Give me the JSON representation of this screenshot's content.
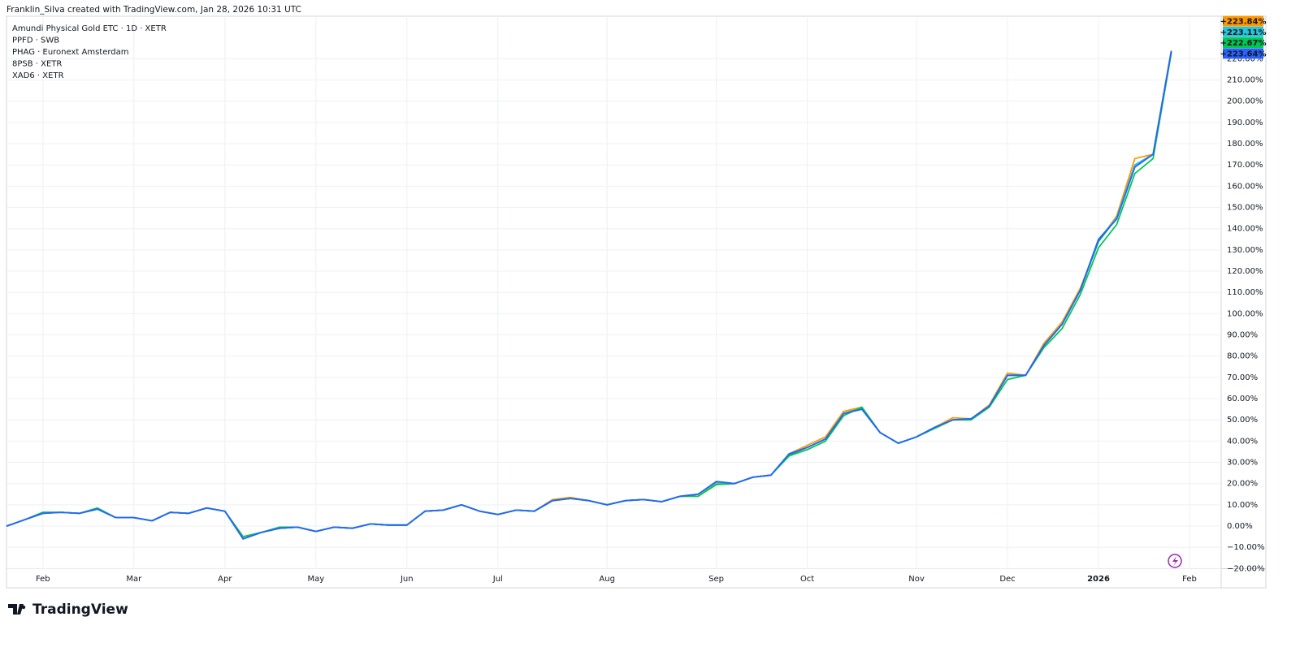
{
  "header": {
    "text": "Franklin_Silva created with TradingView.com, Jan 28, 2026 10:31 UTC"
  },
  "footer": {
    "logo": "TradingView"
  },
  "chart_data": {
    "type": "line",
    "categories": [
      null,
      null,
      "Feb",
      null,
      null,
      null,
      null,
      "Mar",
      null,
      null,
      null,
      null,
      "Apr",
      null,
      null,
      null,
      null,
      "May",
      null,
      null,
      null,
      null,
      "Jun",
      null,
      null,
      null,
      null,
      "Jul",
      null,
      null,
      null,
      null,
      null,
      "Aug",
      null,
      null,
      null,
      null,
      null,
      "Sep",
      null,
      null,
      null,
      null,
      "Oct",
      null,
      null,
      null,
      null,
      null,
      "Nov",
      null,
      null,
      null,
      null,
      "Dec",
      null,
      null,
      null,
      null,
      "2026",
      null,
      null,
      null,
      null,
      "Feb"
    ],
    "series": [
      {
        "name": "PPFD · SWB",
        "color": "#ff9800",
        "values": [
          0,
          3,
          6.5,
          6.5,
          6,
          8,
          4,
          4,
          2.5,
          6.5,
          6,
          8.5,
          7,
          -5,
          -3,
          -1,
          -0.5,
          -2.5,
          -0.5,
          -1,
          1,
          0.5,
          0.5,
          7,
          7.5,
          10,
          7,
          5.5,
          7.5,
          7,
          12.5,
          13.5,
          12,
          10,
          12,
          12.5,
          11.5,
          14,
          14,
          20,
          20,
          23,
          24,
          34,
          38,
          42,
          54,
          56,
          44,
          39,
          42,
          46.5,
          51,
          50.5,
          57,
          72,
          71,
          86,
          96,
          112,
          134,
          146,
          173,
          175,
          223.84,
          null
        ],
        "value_labels": [
          null,
          null,
          null,
          null,
          null,
          null,
          null,
          null,
          null,
          null,
          null,
          null,
          null,
          null,
          null,
          null,
          null,
          null,
          null,
          null,
          null,
          null,
          null,
          null,
          null,
          null,
          null,
          null,
          null,
          null,
          null,
          null,
          null,
          null,
          null,
          null,
          null,
          null,
          null,
          null,
          null,
          null,
          null,
          null,
          null,
          null,
          null,
          null,
          null,
          null,
          null,
          null,
          null,
          null,
          null,
          null,
          null,
          null,
          null,
          null,
          null,
          null,
          null,
          null,
          "+223.84%",
          null
        ]
      },
      {
        "name": "XAD6 · XETR",
        "color": "#089981",
        "values": [
          0,
          3,
          6,
          6.5,
          6,
          8,
          4,
          4,
          2.5,
          6.5,
          6,
          8.5,
          7,
          -6,
          -3,
          -1,
          -0.5,
          -2.5,
          -0.5,
          -1,
          1,
          0.5,
          0.5,
          7,
          7.5,
          10,
          7,
          5.5,
          7.5,
          7,
          12,
          13,
          12,
          10,
          12,
          12.5,
          11.5,
          14,
          15,
          20.5,
          20,
          23,
          24,
          33.5,
          37,
          41,
          53,
          55.5,
          44,
          39,
          42,
          46.5,
          50,
          50.5,
          56.5,
          71,
          71,
          85,
          95,
          111,
          134,
          145,
          170,
          175,
          223.2,
          null
        ]
      },
      {
        "name": "PHAG · Euronext Amsterdam",
        "color": "#26c6da",
        "values": [
          0,
          3,
          6,
          6.5,
          6,
          8,
          4,
          4,
          2.5,
          6.5,
          6,
          8.5,
          7,
          -6,
          -3,
          -1,
          -0.5,
          -2.5,
          -0.5,
          -1,
          1,
          0.5,
          0.5,
          7,
          7.5,
          10,
          7,
          5.5,
          7.5,
          7,
          12,
          13,
          12,
          10,
          12,
          12.5,
          11.5,
          14,
          15,
          20.5,
          20,
          23,
          24,
          34,
          37,
          41,
          53,
          55,
          44,
          39,
          42,
          46.5,
          50,
          50.5,
          56.5,
          71,
          71,
          85,
          95,
          111,
          135,
          145,
          170,
          175,
          223.11,
          null
        ],
        "value_labels": [
          null,
          null,
          null,
          null,
          null,
          null,
          null,
          null,
          null,
          null,
          null,
          null,
          null,
          null,
          null,
          null,
          null,
          null,
          null,
          null,
          null,
          null,
          null,
          null,
          null,
          null,
          null,
          null,
          null,
          null,
          null,
          null,
          null,
          null,
          null,
          null,
          null,
          null,
          null,
          null,
          null,
          null,
          null,
          null,
          null,
          null,
          null,
          null,
          null,
          null,
          null,
          null,
          null,
          null,
          null,
          null,
          null,
          null,
          null,
          null,
          null,
          null,
          null,
          null,
          "+223.11%",
          null
        ]
      },
      {
        "name": "8PSB · XETR",
        "color": "#00c853",
        "values": [
          0,
          3,
          6.5,
          6.5,
          6,
          8.5,
          4,
          4,
          2.5,
          6.5,
          6,
          8.5,
          7,
          -5,
          -3,
          -0.5,
          -0.5,
          -2.5,
          -0.5,
          -1,
          1,
          0.5,
          0.5,
          7,
          7.5,
          10,
          7,
          5.5,
          7.5,
          7,
          12,
          13,
          12,
          10,
          12,
          12.5,
          11.5,
          14,
          14,
          19.5,
          20,
          23,
          24,
          33,
          36,
          40,
          52,
          56,
          44,
          39,
          42,
          46,
          50,
          50,
          56,
          69,
          71,
          84,
          93,
          109,
          131,
          142,
          166,
          173,
          222.67,
          null
        ],
        "value_labels": [
          null,
          null,
          null,
          null,
          null,
          null,
          null,
          null,
          null,
          null,
          null,
          null,
          null,
          null,
          null,
          null,
          null,
          null,
          null,
          null,
          null,
          null,
          null,
          null,
          null,
          null,
          null,
          null,
          null,
          null,
          null,
          null,
          null,
          null,
          null,
          null,
          null,
          null,
          null,
          null,
          null,
          null,
          null,
          null,
          null,
          null,
          null,
          null,
          null,
          null,
          null,
          null,
          null,
          null,
          null,
          null,
          null,
          null,
          null,
          null,
          null,
          null,
          null,
          null,
          "+222.67%",
          null
        ]
      },
      {
        "name": "Amundi Physical Gold ETC · 1D · XETR",
        "color": "#2962ff",
        "values": [
          0,
          3,
          6,
          6.5,
          6,
          8,
          4,
          4,
          2.5,
          6.5,
          6,
          8.5,
          7,
          -6,
          -3,
          -1,
          -0.5,
          -2.5,
          -0.5,
          -1,
          1,
          0.5,
          0.5,
          7,
          7.5,
          10,
          7,
          5.5,
          7.5,
          7,
          12,
          13,
          12,
          10,
          12,
          12.5,
          11.5,
          14,
          15,
          21,
          20,
          23,
          24,
          34,
          37,
          41,
          53,
          55,
          44,
          39,
          42,
          46.5,
          50,
          50.5,
          56.5,
          71,
          71,
          85,
          95,
          111,
          135,
          144.5,
          169,
          175,
          223.64,
          null
        ],
        "value_labels": [
          null,
          null,
          null,
          null,
          null,
          null,
          null,
          null,
          null,
          null,
          null,
          null,
          null,
          null,
          null,
          null,
          null,
          null,
          null,
          null,
          null,
          null,
          null,
          null,
          null,
          null,
          null,
          null,
          null,
          null,
          null,
          null,
          null,
          null,
          null,
          null,
          null,
          null,
          null,
          null,
          null,
          null,
          null,
          null,
          null,
          null,
          null,
          null,
          null,
          null,
          null,
          null,
          null,
          null,
          null,
          null,
          null,
          null,
          null,
          null,
          null,
          null,
          null,
          null,
          "+223.64%",
          null
        ]
      }
    ],
    "legend_order": [
      4,
      0,
      2,
      3,
      1
    ],
    "ylim": [
      -20,
      240
    ],
    "yticks": [
      {
        "value": -20,
        "label": "−20.00%"
      },
      {
        "value": -10,
        "label": "−10.00%"
      },
      {
        "value": 0,
        "label": "0.00%"
      },
      {
        "value": 10,
        "label": "10.00%"
      },
      {
        "value": 20,
        "label": "20.00%"
      },
      {
        "value": 30,
        "label": "30.00%"
      },
      {
        "value": 40,
        "label": "40.00%"
      },
      {
        "value": 50,
        "label": "50.00%"
      },
      {
        "value": 60,
        "label": "60.00%"
      },
      {
        "value": 70,
        "label": "70.00%"
      },
      {
        "value": 80,
        "label": "80.00%"
      },
      {
        "value": 90,
        "label": "90.00%"
      },
      {
        "value": 100,
        "label": "100.00%"
      },
      {
        "value": 110,
        "label": "110.00%"
      },
      {
        "value": 120,
        "label": "120.00%"
      },
      {
        "value": 130,
        "label": "130.00%"
      },
      {
        "value": 140,
        "label": "140.00%"
      },
      {
        "value": 150,
        "label": "150.00%"
      },
      {
        "value": 160,
        "label": "160.00%"
      },
      {
        "value": 170,
        "label": "170.00%"
      },
      {
        "value": 180,
        "label": "180.00%"
      },
      {
        "value": 190,
        "label": "190.00%"
      },
      {
        "value": 200,
        "label": "200.00%"
      },
      {
        "value": 210,
        "label": "210.00%"
      },
      {
        "value": 220,
        "label": "220.00%"
      }
    ],
    "grid": true
  }
}
